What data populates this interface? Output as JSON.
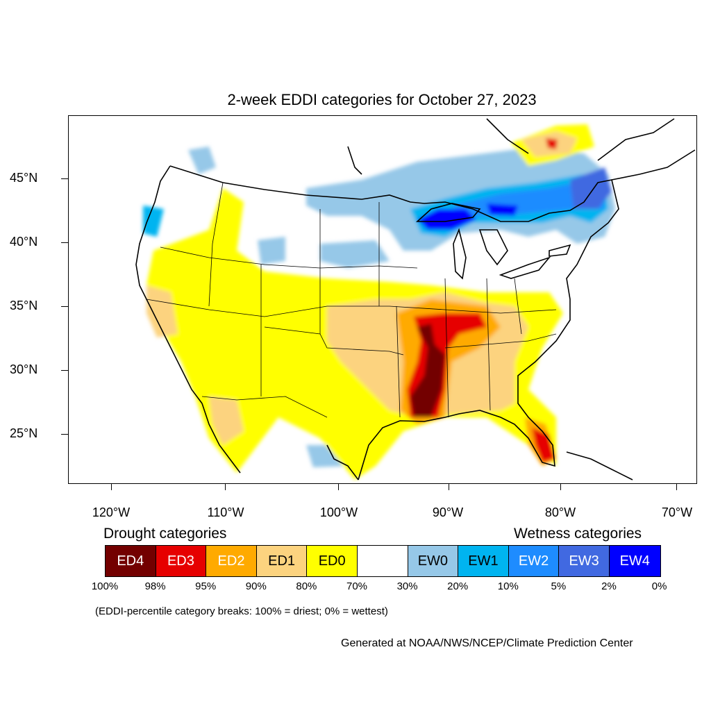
{
  "title": "2-week EDDI categories for October 27, 2023",
  "lat_labels": [
    "45°N",
    "40°N",
    "35°N",
    "30°N",
    "25°N"
  ],
  "lon_labels": [
    "120°W",
    "110°W",
    "100°W",
    "90°W",
    "80°W",
    "70°W"
  ],
  "legend": {
    "drought_heading": "Drought categories",
    "wetness_heading": "Wetness categories",
    "categories": [
      {
        "label": "ED4",
        "color": "#730000",
        "text_color": "#ffffff"
      },
      {
        "label": "ED3",
        "color": "#e60000",
        "text_color": "#ffffff"
      },
      {
        "label": "ED2",
        "color": "#ffaa00",
        "text_color": "#ffffff"
      },
      {
        "label": "ED1",
        "color": "#fcd37f",
        "text_color": "#000000"
      },
      {
        "label": "ED0",
        "color": "#ffff00",
        "text_color": "#000000"
      },
      {
        "label": "",
        "color": "#ffffff",
        "text_color": "#000000"
      },
      {
        "label": "EW0",
        "color": "#96c8e8",
        "text_color": "#000000"
      },
      {
        "label": "EW1",
        "color": "#00b4f0",
        "text_color": "#000000"
      },
      {
        "label": "EW2",
        "color": "#1e8cff",
        "text_color": "#ffffff"
      },
      {
        "label": "EW3",
        "color": "#4169e1",
        "text_color": "#ffffff"
      },
      {
        "label": "EW4",
        "color": "#0000ff",
        "text_color": "#ffffff"
      }
    ],
    "breaks": [
      "100%",
      "98%",
      "95%",
      "90%",
      "80%",
      "70%",
      "30%",
      "20%",
      "10%",
      "5%",
      "2%",
      "0%"
    ]
  },
  "note": "(EDDI-percentile category breaks: 100% = driest; 0% = wettest)",
  "credit": "Generated at NOAA/NWS/NCEP/Climate Prediction Center"
}
